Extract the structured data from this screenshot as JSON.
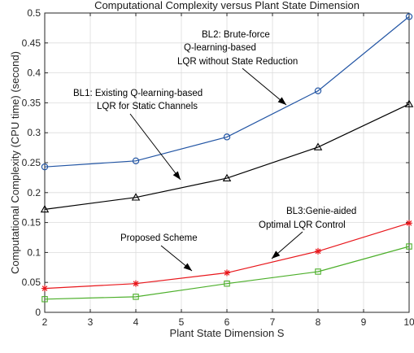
{
  "chart_data": {
    "type": "line",
    "title": "Computational Complexity versus Plant State Dimension",
    "xlabel": "Plant State Dimension S",
    "ylabel": "Computational Complexity (CPU time) (second)",
    "xlim": [
      2,
      10
    ],
    "ylim": [
      0,
      0.5
    ],
    "xticks": [
      "2",
      "3",
      "4",
      "5",
      "6",
      "7",
      "8",
      "9",
      "10"
    ],
    "yticks": [
      "0",
      "0.05",
      "0.1",
      "0.15",
      "0.2",
      "0.25",
      "0.3",
      "0.35",
      "0.4",
      "0.45",
      "0.5"
    ],
    "grid": true,
    "legend": "none",
    "x": [
      2,
      4,
      6,
      8,
      10
    ],
    "series": [
      {
        "name": "BL2",
        "color": "#2255a4",
        "marker": "circle",
        "values": [
          0.243,
          0.253,
          0.293,
          0.37,
          0.494
        ]
      },
      {
        "name": "BL1",
        "color": "#000000",
        "marker": "triangle",
        "values": [
          0.172,
          0.192,
          0.224,
          0.276,
          0.348
        ]
      },
      {
        "name": "Proposed",
        "color": "#e8161b",
        "marker": "star",
        "values": [
          0.04,
          0.048,
          0.066,
          0.102,
          0.149
        ]
      },
      {
        "name": "BL3",
        "color": "#4caf2a",
        "marker": "square",
        "values": [
          0.022,
          0.026,
          0.048,
          0.068,
          0.11
        ]
      }
    ],
    "annotations": [
      {
        "lines": [
          "BL2: Brute-force",
          "Q-learning-based",
          "LQR without State Reduction"
        ]
      },
      {
        "lines": [
          "BL1: Existing Q-learning-based",
          "LQR for Static Channels"
        ]
      },
      {
        "lines": [
          "BL3:Genie-aided",
          "Optimal LQR Control"
        ]
      },
      {
        "lines": [
          "Proposed Scheme"
        ]
      }
    ]
  }
}
